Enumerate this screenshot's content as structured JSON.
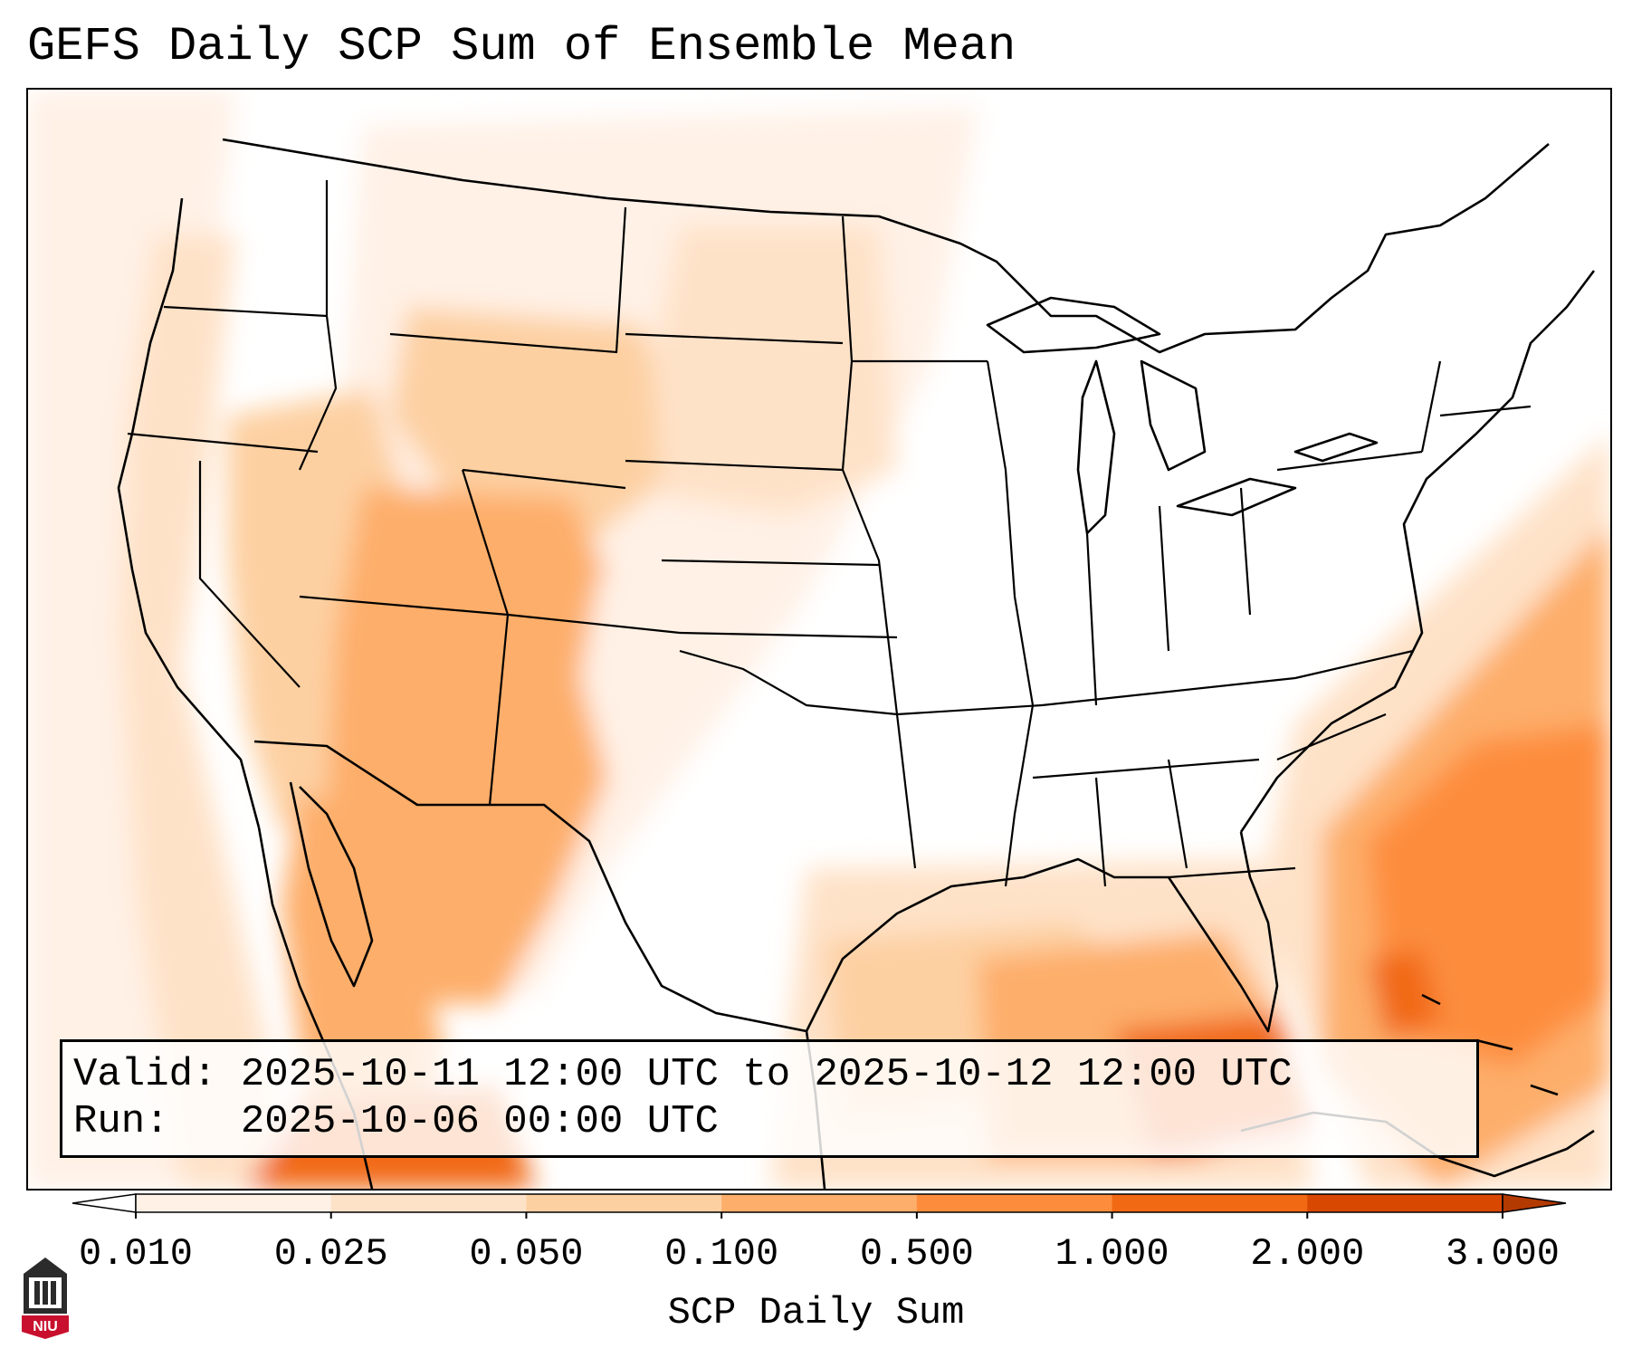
{
  "title": "GEFS Daily SCP Sum of Ensemble Mean",
  "info": {
    "valid_label": "Valid:",
    "valid_value": "2025-10-11 12:00 UTC to 2025-10-12 12:00 UTC",
    "run_label": "Run:",
    "run_value": "2025-10-06 00:00 UTC"
  },
  "colorbar": {
    "label": "SCP Daily Sum",
    "ticks": [
      "0.010",
      "0.025",
      "0.050",
      "0.100",
      "0.500",
      "1.000",
      "2.000",
      "3.000"
    ],
    "colors": [
      "#fff1e6",
      "#fee2c8",
      "#fdd0a2",
      "#fdae6b",
      "#fd8d3c",
      "#f16913",
      "#d94801"
    ],
    "under_color": "#ffffff",
    "over_color": "#b33a00",
    "extend": "both"
  },
  "logo_text": "NIU",
  "map": {
    "projection": "Lambert Conformal (CONUS)",
    "features": [
      "coastlines",
      "country borders",
      "state borders"
    ]
  }
}
